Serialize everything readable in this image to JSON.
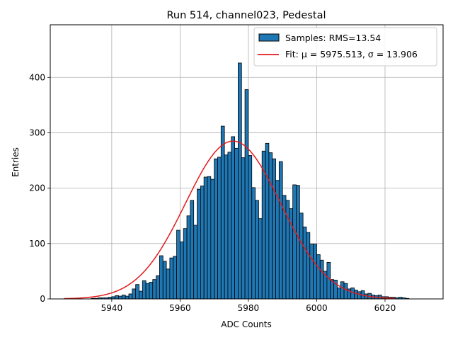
{
  "chart_data": {
    "type": "bar",
    "title": "Run 514, channel023, Pedestal",
    "xlabel": "ADC Counts",
    "ylabel": "Entries",
    "xlim": [
      5922,
      6037
    ],
    "ylim": [
      0,
      495
    ],
    "xticks": [
      5940,
      5960,
      5980,
      6000,
      6020
    ],
    "yticks": [
      0,
      100,
      200,
      300,
      400
    ],
    "grid": true,
    "legend_position": "top-right",
    "legend": {
      "samples_label": "Samples: RMS=13.54",
      "fit_label": "Fit: μ = 5975.513, σ = 13.906"
    },
    "bar_color": "#1f77b4",
    "bar_edge_color": "#000000",
    "fit_color": "#e41a1c",
    "bin_width": 1,
    "histogram": {
      "bin_start": 5934,
      "values": [
        1,
        1,
        2,
        2,
        2,
        3,
        4,
        6,
        5,
        7,
        5,
        9,
        18,
        26,
        14,
        33,
        28,
        30,
        35,
        42,
        78,
        68,
        54,
        74,
        77,
        124,
        103,
        127,
        150,
        178,
        133,
        198,
        204,
        220,
        221,
        216,
        253,
        256,
        312,
        260,
        265,
        293,
        272,
        426,
        255,
        378,
        259,
        201,
        178,
        145,
        267,
        281,
        264,
        253,
        214,
        248,
        187,
        178,
        163,
        206,
        205,
        155,
        130,
        120,
        99,
        99,
        80,
        70,
        50,
        66,
        35,
        34,
        20,
        31,
        28,
        18,
        20,
        16,
        13,
        15,
        9,
        10,
        7,
        6,
        7,
        4,
        4,
        3,
        3,
        2,
        3,
        2,
        1
      ]
    },
    "fit": {
      "mu": 5975.513,
      "sigma": 13.906,
      "amplitude": 285,
      "x_range": [
        5926,
        6023
      ]
    }
  }
}
